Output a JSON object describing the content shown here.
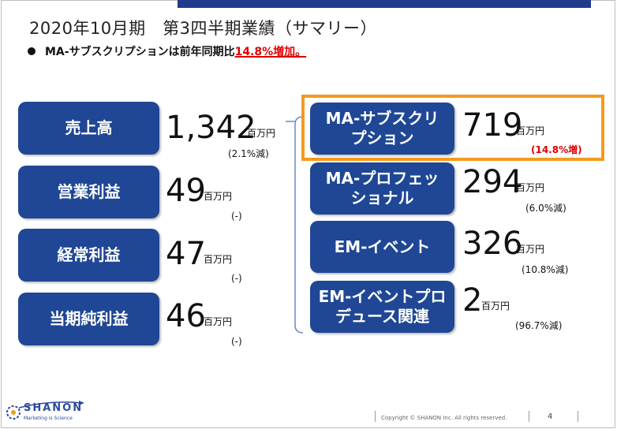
{
  "title": "2020年10月期　第3四半期業績（サマリー）",
  "subtitle": {
    "prefix": "MA-サブスクリプションは前年同期比",
    "highlight": "14.8%増加。"
  },
  "left_items": [
    {
      "label": "売上高",
      "value": "1,342",
      "unit": "百万円",
      "change": "(2.1%減)"
    },
    {
      "label": "営業利益",
      "value": "49",
      "unit": "百万円",
      "change": "(-)"
    },
    {
      "label": "経常利益",
      "value": "47",
      "unit": "百万円",
      "change": "(-)"
    },
    {
      "label": "当期純利益",
      "value": "46",
      "unit": "百万円",
      "change": "(-)"
    }
  ],
  "right_items": [
    {
      "label_line1": "MA-サブスクリ",
      "label_line2": "プション",
      "value": "719",
      "unit": "百万円",
      "change": "(14.8%増)"
    },
    {
      "label_line1": "MA-プロフェッ",
      "label_line2": "ショナル",
      "value": "294",
      "unit": "百万円",
      "change": "(6.0%減)"
    },
    {
      "label_line1": "EM-イベント",
      "label_line2": "",
      "value": "326",
      "unit": "百万円",
      "change": "(10.8%減)"
    },
    {
      "label_line1": "EM-イベントプロ",
      "label_line2": "デュース関連",
      "value": "2",
      "unit": "百万円",
      "change": "(96.7%減)"
    }
  ],
  "footer": {
    "logo_name": "SHANON",
    "logo_tagline": "Marketing is Science",
    "copyright": "Copyright © SHANON Inc. All rights reserved.",
    "page": "4"
  },
  "colors": {
    "box_blue": "#1f4795",
    "top_bar": "#213b8c",
    "highlight_red": "#e00000",
    "frame_orange": "#f39a1e"
  }
}
